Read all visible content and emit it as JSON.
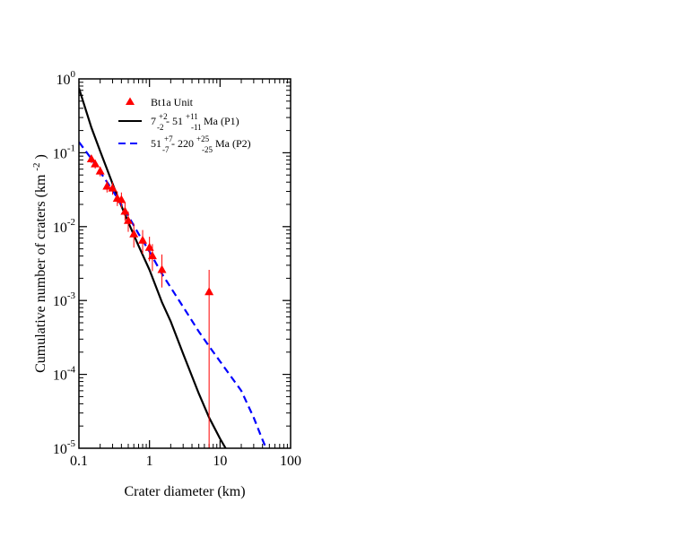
{
  "chart_data": {
    "type": "scatter",
    "x_scale": "log",
    "y_scale": "log",
    "xlim": [
      0.1,
      100
    ],
    "ylim": [
      1e-05,
      1
    ],
    "grid": false,
    "legend_placement": "top-right",
    "xlabel": "Crater diameter (km)",
    "ylabel": {
      "text": "Cumulative number of craters (km",
      "sup": "-2",
      "tail": ")"
    },
    "x_ticks": [
      "0.1",
      "1",
      "10",
      "100"
    ],
    "y_ticks": [
      {
        "base": "10",
        "exp": "0"
      },
      {
        "base": "10",
        "exp": "-1"
      },
      {
        "base": "10",
        "exp": "-2"
      },
      {
        "base": "10",
        "exp": "-3"
      },
      {
        "base": "10",
        "exp": "-4"
      },
      {
        "base": "10",
        "exp": "-5"
      }
    ],
    "legend": [
      {
        "kind": "marker",
        "text": "Bt1a Unit",
        "color": "#ff0000"
      },
      {
        "kind": "line",
        "color": "#000000",
        "dash": "solid",
        "parts": [
          "7",
          "+2",
          "-2",
          " - 51",
          "+11",
          "-11",
          "Ma (P1)"
        ]
      },
      {
        "kind": "line",
        "color": "#0000ff",
        "dash": "dashed",
        "parts": [
          "51",
          "+7",
          "-7",
          " - 220",
          "+25",
          "-25",
          "Ma (P2)"
        ]
      }
    ],
    "series": [
      {
        "name": "Bt1a Unit",
        "color": "#ff0000",
        "marker": "triangle",
        "points": [
          {
            "x": 0.15,
            "y": 0.082,
            "ylo": 0.072,
            "yhi": 0.093
          },
          {
            "x": 0.17,
            "y": 0.07,
            "ylo": 0.061,
            "yhi": 0.08
          },
          {
            "x": 0.2,
            "y": 0.056,
            "ylo": 0.048,
            "yhi": 0.065
          },
          {
            "x": 0.25,
            "y": 0.035,
            "ylo": 0.029,
            "yhi": 0.042
          },
          {
            "x": 0.3,
            "y": 0.033,
            "ylo": 0.027,
            "yhi": 0.04
          },
          {
            "x": 0.35,
            "y": 0.024,
            "ylo": 0.019,
            "yhi": 0.03
          },
          {
            "x": 0.4,
            "y": 0.023,
            "ylo": 0.018,
            "yhi": 0.029
          },
          {
            "x": 0.45,
            "y": 0.016,
            "ylo": 0.012,
            "yhi": 0.021
          },
          {
            "x": 0.5,
            "y": 0.012,
            "ylo": 0.0085,
            "yhi": 0.016
          },
          {
            "x": 0.6,
            "y": 0.0079,
            "ylo": 0.0052,
            "yhi": 0.011
          },
          {
            "x": 0.8,
            "y": 0.0065,
            "ylo": 0.0043,
            "yhi": 0.009
          },
          {
            "x": 1.0,
            "y": 0.0052,
            "ylo": 0.0034,
            "yhi": 0.0073
          },
          {
            "x": 1.1,
            "y": 0.004,
            "ylo": 0.0025,
            "yhi": 0.0058
          },
          {
            "x": 1.5,
            "y": 0.0026,
            "ylo": 0.0015,
            "yhi": 0.0042
          },
          {
            "x": 7.0,
            "y": 0.0013,
            "ylo": 1e-05,
            "yhi": 0.0026
          }
        ]
      },
      {
        "name": "7 - 51 Ma (P1)",
        "color": "#000000",
        "dash": "solid",
        "points": [
          [
            0.1,
            0.75
          ],
          [
            0.15,
            0.22
          ],
          [
            0.2,
            0.105
          ],
          [
            0.3,
            0.038
          ],
          [
            0.4,
            0.019
          ],
          [
            0.5,
            0.0115
          ],
          [
            0.7,
            0.0055
          ],
          [
            1.0,
            0.0026
          ],
          [
            1.5,
            0.00095
          ],
          [
            2.0,
            0.00052
          ],
          [
            3.0,
            0.00019
          ],
          [
            5.0,
            5.5e-05
          ],
          [
            7.0,
            2.6e-05
          ],
          [
            10.0,
            1.35e-05
          ],
          [
            12.0,
            1e-05
          ]
        ]
      },
      {
        "name": "51 - 220 Ma (P2)",
        "color": "#0000ff",
        "dash": "dashed",
        "points": [
          [
            0.1,
            0.14
          ],
          [
            0.15,
            0.083
          ],
          [
            0.2,
            0.055
          ],
          [
            0.3,
            0.031
          ],
          [
            0.5,
            0.014
          ],
          [
            0.7,
            0.008
          ],
          [
            1.0,
            0.0046
          ],
          [
            1.5,
            0.0023
          ],
          [
            2.0,
            0.0015
          ],
          [
            3.0,
            0.00082
          ],
          [
            5.0,
            0.00038
          ],
          [
            7.0,
            0.00024
          ],
          [
            10.0,
            0.00015
          ],
          [
            20.0,
            6e-05
          ],
          [
            30.0,
            2.6e-05
          ],
          [
            40.0,
            1.3e-05
          ],
          [
            45.0,
            1e-05
          ]
        ]
      }
    ]
  }
}
